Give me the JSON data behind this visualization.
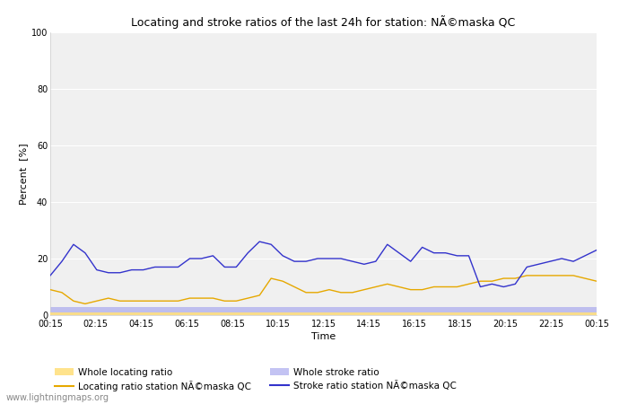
{
  "title": "Locating and stroke ratios of the last 24h for station: NÃ©maska QC",
  "xlabel": "Time",
  "ylabel": "Percent  [%]",
  "ylim": [
    0,
    100
  ],
  "yticks": [
    0,
    20,
    40,
    60,
    80,
    100
  ],
  "x_labels": [
    "00:15",
    "02:15",
    "04:15",
    "06:15",
    "08:15",
    "10:15",
    "12:15",
    "14:15",
    "16:15",
    "18:15",
    "20:15",
    "22:15",
    "00:15"
  ],
  "background_color": "#ffffff",
  "plot_bg_color": "#f0f0f0",
  "watermark": "www.lightningmaps.org",
  "locating_ratio_station": [
    9,
    8,
    5,
    4,
    5,
    6,
    5,
    5,
    5,
    5,
    5,
    5,
    6,
    6,
    6,
    5,
    5,
    6,
    7,
    13,
    12,
    10,
    8,
    8,
    9,
    8,
    8,
    9,
    10,
    11,
    10,
    9,
    9,
    10,
    10,
    10,
    11,
    12,
    12,
    13,
    13,
    14,
    14,
    14,
    14,
    14,
    13,
    12
  ],
  "stroke_ratio_station": [
    14,
    19,
    25,
    22,
    16,
    15,
    15,
    16,
    16,
    17,
    17,
    17,
    20,
    20,
    21,
    17,
    17,
    22,
    26,
    25,
    21,
    19,
    19,
    20,
    20,
    20,
    19,
    18,
    19,
    25,
    22,
    19,
    24,
    22,
    22,
    21,
    21,
    10,
    11,
    10,
    11,
    17,
    18,
    19,
    20,
    19,
    21,
    23
  ],
  "whole_locating_ratio": [
    1,
    1,
    1,
    1,
    1,
    1,
    1,
    1,
    1,
    1,
    1,
    1,
    1,
    1,
    1,
    1,
    1,
    1,
    1,
    1,
    1,
    1,
    1,
    1,
    1,
    1,
    1,
    1,
    1,
    1,
    1,
    1,
    1,
    1,
    1,
    1,
    1,
    1,
    1,
    1,
    1,
    1,
    1,
    1,
    1,
    1,
    1,
    1
  ],
  "whole_stroke_ratio": [
    3,
    3,
    3,
    3,
    3,
    3,
    3,
    3,
    3,
    3,
    3,
    3,
    3,
    3,
    3,
    3,
    3,
    3,
    3,
    3,
    3,
    3,
    3,
    3,
    3,
    3,
    3,
    3,
    3,
    3,
    3,
    3,
    3,
    3,
    3,
    3,
    3,
    3,
    3,
    3,
    3,
    3,
    3,
    3,
    3,
    3,
    3,
    3
  ],
  "color_locating_station": "#e6a800",
  "color_stroke_station": "#3333cc",
  "color_whole_locating": "#ffe080",
  "color_whole_stroke": "#aaaaee",
  "legend_labels": [
    "Whole locating ratio",
    "Locating ratio station NÃ©maska QC",
    "Whole stroke ratio",
    "Stroke ratio station NÃ©maska QC"
  ]
}
